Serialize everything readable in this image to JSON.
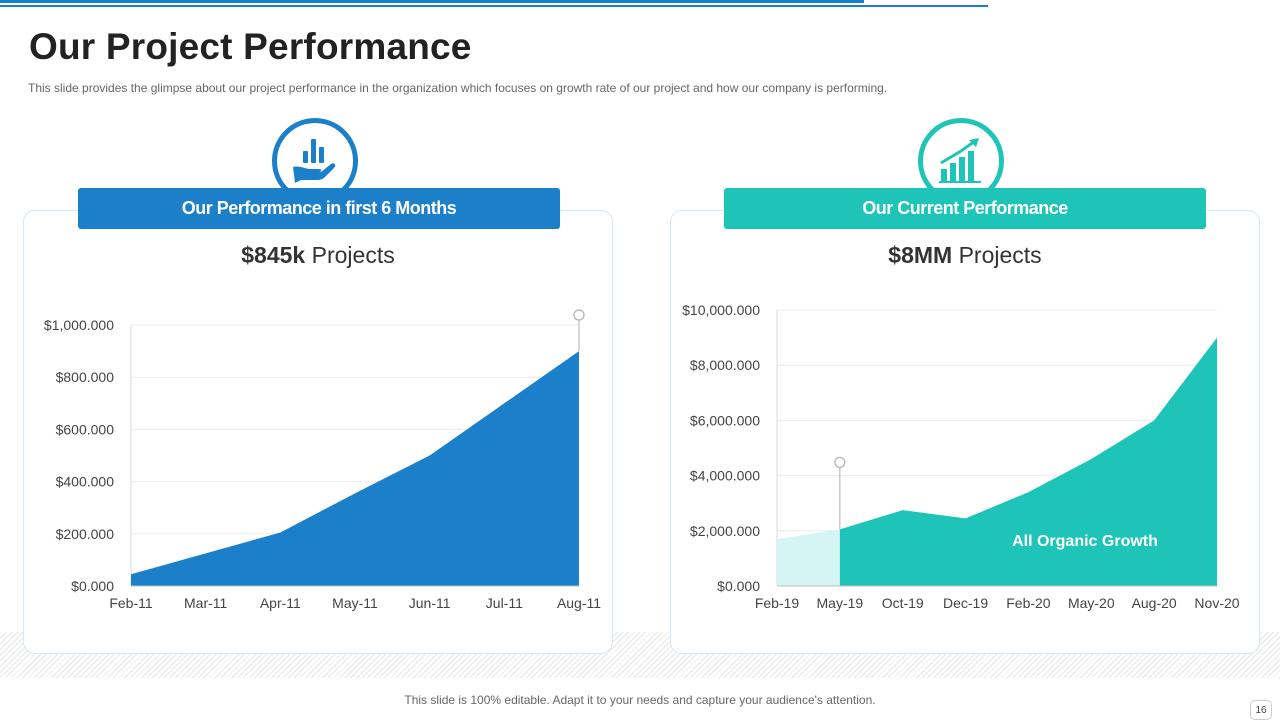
{
  "page": {
    "title": "Our Project Performance",
    "subtitle": "This slide provides  the glimpse about our project performance  in the organization  which focuses on growth  rate of our project and how our company is performing.",
    "footer": "This slide is 100% editable. Adapt it to your needs and capture your audience's attention.",
    "page_number": "16"
  },
  "colors": {
    "blue": "#1b7fca",
    "teal": "#1fc4b8",
    "teal_light": "#d4f5f3"
  },
  "left_card": {
    "banner": "Our Performance in first 6 Months",
    "headline_value": "$845k",
    "headline_label": " Projects",
    "icon": "hand-bar-chart-icon"
  },
  "right_card": {
    "banner": "Our Current Performance",
    "headline_value": "$8MM",
    "headline_label": " Projects",
    "icon": "growth-bar-chart-icon"
  },
  "chart_data": [
    {
      "type": "area",
      "title": "Our Performance in first 6 Months",
      "categories": [
        "Feb-11",
        "Mar-11",
        "Apr-11",
        "May-11",
        "Jun-11",
        "Jul-11",
        "Aug-11"
      ],
      "values": [
        45000,
        125000,
        205000,
        355000,
        500000,
        700000,
        900000
      ],
      "ylim": [
        0,
        1000000
      ],
      "yticks": [
        0,
        200000,
        400000,
        600000,
        800000,
        1000000
      ],
      "ytick_labels": [
        "$0.000",
        "$200.000",
        "$400.000",
        "$600.000",
        "$800.000",
        "$1,000.000"
      ],
      "marker_category": "Aug-11",
      "color": "#1b7fca"
    },
    {
      "type": "area",
      "title": "Our Current Performance",
      "categories": [
        "Feb-19",
        "May-19",
        "Oct-19",
        "Dec-19",
        "Feb-20",
        "May-20",
        "Aug-20",
        "Nov-20"
      ],
      "values": [
        1700000,
        2050000,
        2750000,
        2450000,
        3400000,
        4600000,
        6000000,
        9000000
      ],
      "ylim": [
        0,
        10000000
      ],
      "yticks": [
        0,
        2000000,
        4000000,
        6000000,
        8000000,
        10000000
      ],
      "ytick_labels": [
        "$0.000",
        "$2,000.000",
        "$4,000.000",
        "$6,000.000",
        "$8,000.000",
        "$10,000.000"
      ],
      "highlight_from": "May-19",
      "marker_category": "May-19",
      "annotation": "All Organic Growth",
      "color": "#1fc4b8",
      "color_light": "#d4f5f3"
    }
  ]
}
